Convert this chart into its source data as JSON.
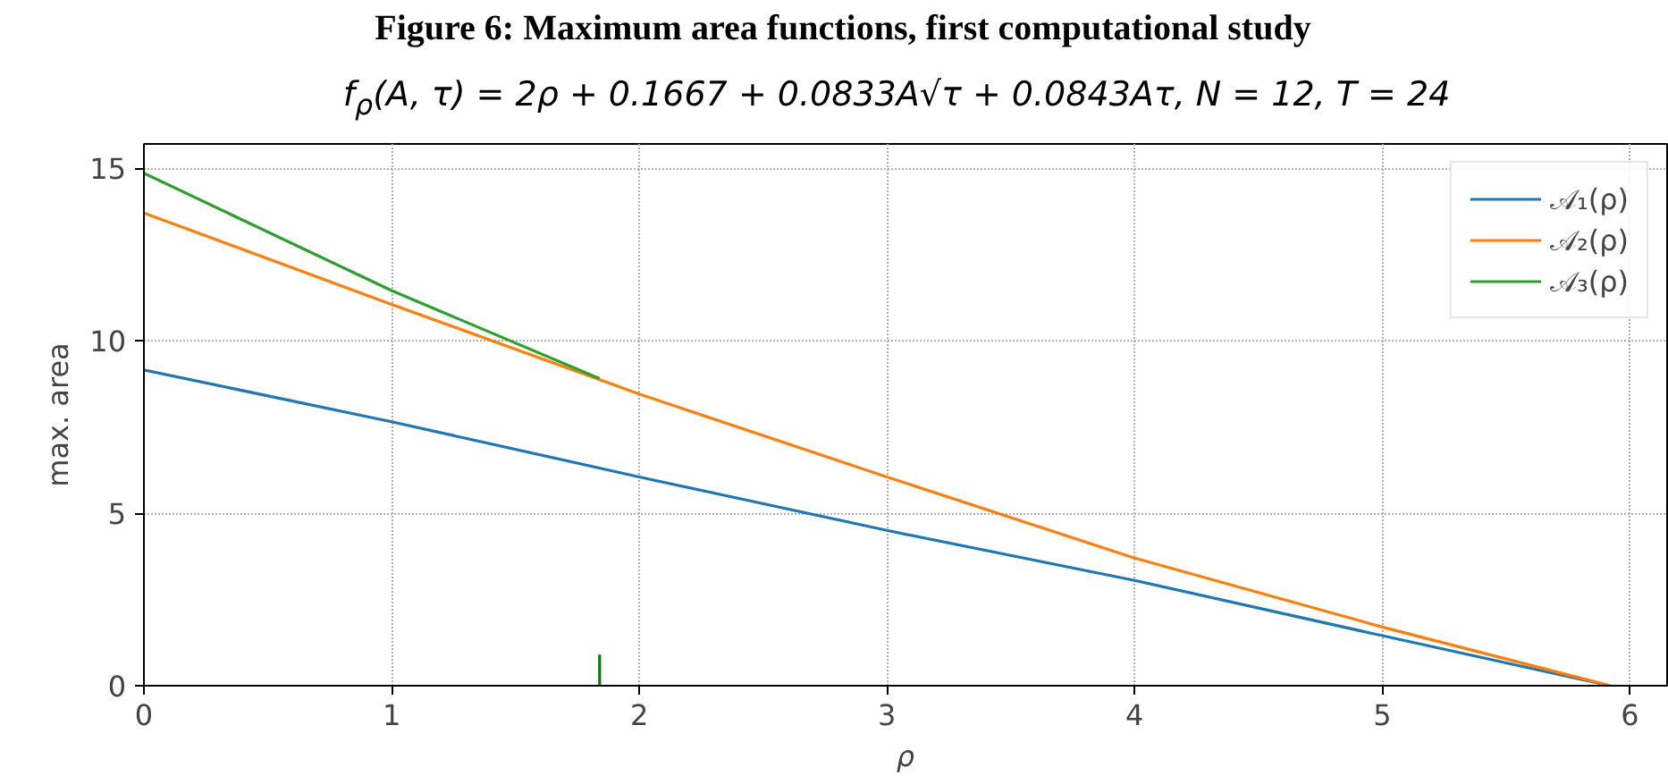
{
  "chart_data": {
    "type": "line",
    "title": "Figure 6: Maximum area functions, first computational study",
    "subtitle": "f$_{ρ}$(A, τ) = 2ρ + 0.1667 + 0.0833A√τ + 0.0843Aτ,  N = 12,  T = 24",
    "xlabel": "ρ",
    "ylabel": "max. area",
    "series": [
      {
        "name": "𝒜₁(ρ)",
        "color": "#1f77b4",
        "x": [
          0,
          1,
          2,
          3,
          4,
          5,
          5.92
        ],
        "values": [
          9.15,
          7.65,
          6.05,
          4.5,
          3.05,
          1.45,
          0
        ]
      },
      {
        "name": "𝒜₂(ρ)",
        "color": "#ff7f0e",
        "x": [
          0,
          1,
          2,
          3,
          4,
          5,
          5.92
        ],
        "values": [
          13.7,
          11.05,
          8.45,
          6.05,
          3.7,
          1.7,
          0
        ]
      },
      {
        "name": "𝒜₃(ρ)",
        "color": "#2ca02c",
        "x": [
          0,
          1,
          1.84
        ],
        "values": [
          14.85,
          11.45,
          8.9
        ]
      },
      {
        "color": "#008000",
        "x": [
          1.84,
          1.84
        ],
        "values": [
          0,
          0.9
        ]
      }
    ],
    "xlim": [
      0,
      6.15
    ],
    "ylim": [
      0,
      15.7
    ],
    "xticks": [
      0,
      1,
      2,
      3,
      4,
      5,
      6
    ],
    "yticks": [
      0,
      5,
      10,
      15
    ],
    "grid": true,
    "legend": "top right",
    "line_style": "solid"
  }
}
